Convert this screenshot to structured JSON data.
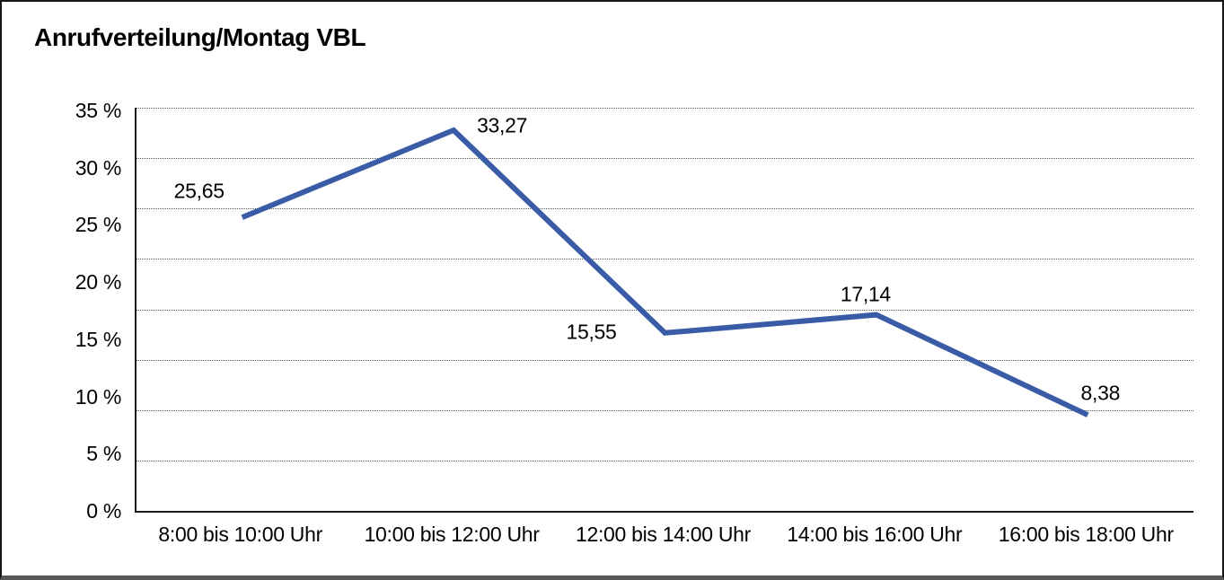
{
  "chart_data": {
    "type": "line",
    "title": "Anrufverteilung/Montag VBL",
    "categories": [
      "8:00 bis 10:00 Uhr",
      "10:00 bis 12:00 Uhr",
      "12:00 bis 14:00 Uhr",
      "14:00 bis 16:00 Uhr",
      "16:00 bis 18:00 Uhr"
    ],
    "values": [
      25.65,
      33.27,
      15.55,
      17.14,
      8.38
    ],
    "value_labels": [
      "25,65",
      "33,27",
      "15,55",
      "17,14",
      "8,38"
    ],
    "xlabel": "",
    "ylabel": "",
    "ylim": [
      0,
      35
    ],
    "ytick_step": 5,
    "ytick_labels": [
      "35 %",
      "30 %",
      "25 %",
      "20 %",
      "15 %",
      "10 %",
      "5 %",
      "0 %"
    ],
    "grid": "horizontal-dotted",
    "legend_position": "none",
    "line_color": "#3A5CA7",
    "text_color": "#000000",
    "axis_color": "#1c1c1c",
    "frame_border_color": "#161616",
    "frame_bottom_color": "#575757"
  }
}
